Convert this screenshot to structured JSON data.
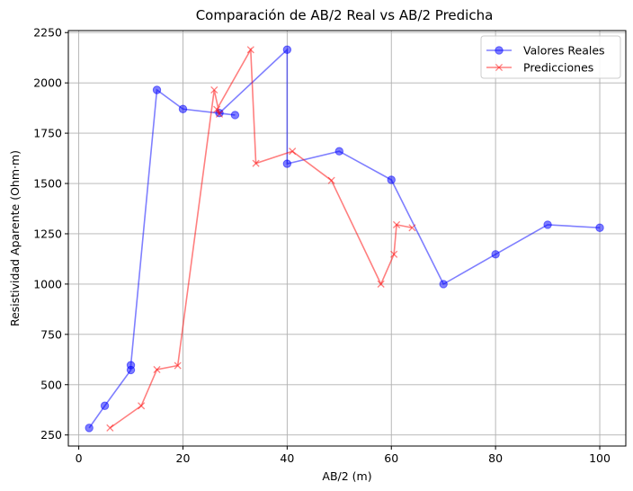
{
  "chart_data": {
    "type": "line",
    "title": "Comparación de AB/2 Real vs AB/2 Predicha",
    "xlabel": "AB/2 (m)",
    "ylabel": "Resistividad Aparente (Ohm·m)",
    "xlim": [
      -2,
      105
    ],
    "ylim": [
      195,
      2260
    ],
    "x_ticks": [
      0,
      20,
      40,
      60,
      80,
      100
    ],
    "y_ticks": [
      250,
      500,
      750,
      1000,
      1250,
      1500,
      1750,
      2000,
      2250
    ],
    "grid": true,
    "legend_position": "top-right",
    "series": [
      {
        "name": "Valores Reales",
        "color": "#0000ff",
        "marker": "circle",
        "x": [
          2,
          5,
          10,
          10,
          15,
          20,
          30,
          27,
          40,
          40,
          50,
          60,
          70,
          80,
          90,
          100
        ],
        "y": [
          285,
          395,
          573,
          597,
          1965,
          1870,
          1840,
          1850,
          2165,
          1598,
          1660,
          1518,
          1000,
          1148,
          1295,
          1280
        ]
      },
      {
        "name": "Predicciones",
        "color": "#ff0000",
        "marker": "x",
        "x": [
          6,
          12,
          15,
          19,
          26,
          27,
          26.5,
          33,
          34,
          41,
          48.5,
          58,
          60.5,
          61,
          64
        ],
        "y": [
          285,
          395,
          575,
          595,
          1965,
          1845,
          1868,
          2165,
          1600,
          1660,
          1515,
          1000,
          1148,
          1295,
          1280
        ]
      }
    ]
  }
}
